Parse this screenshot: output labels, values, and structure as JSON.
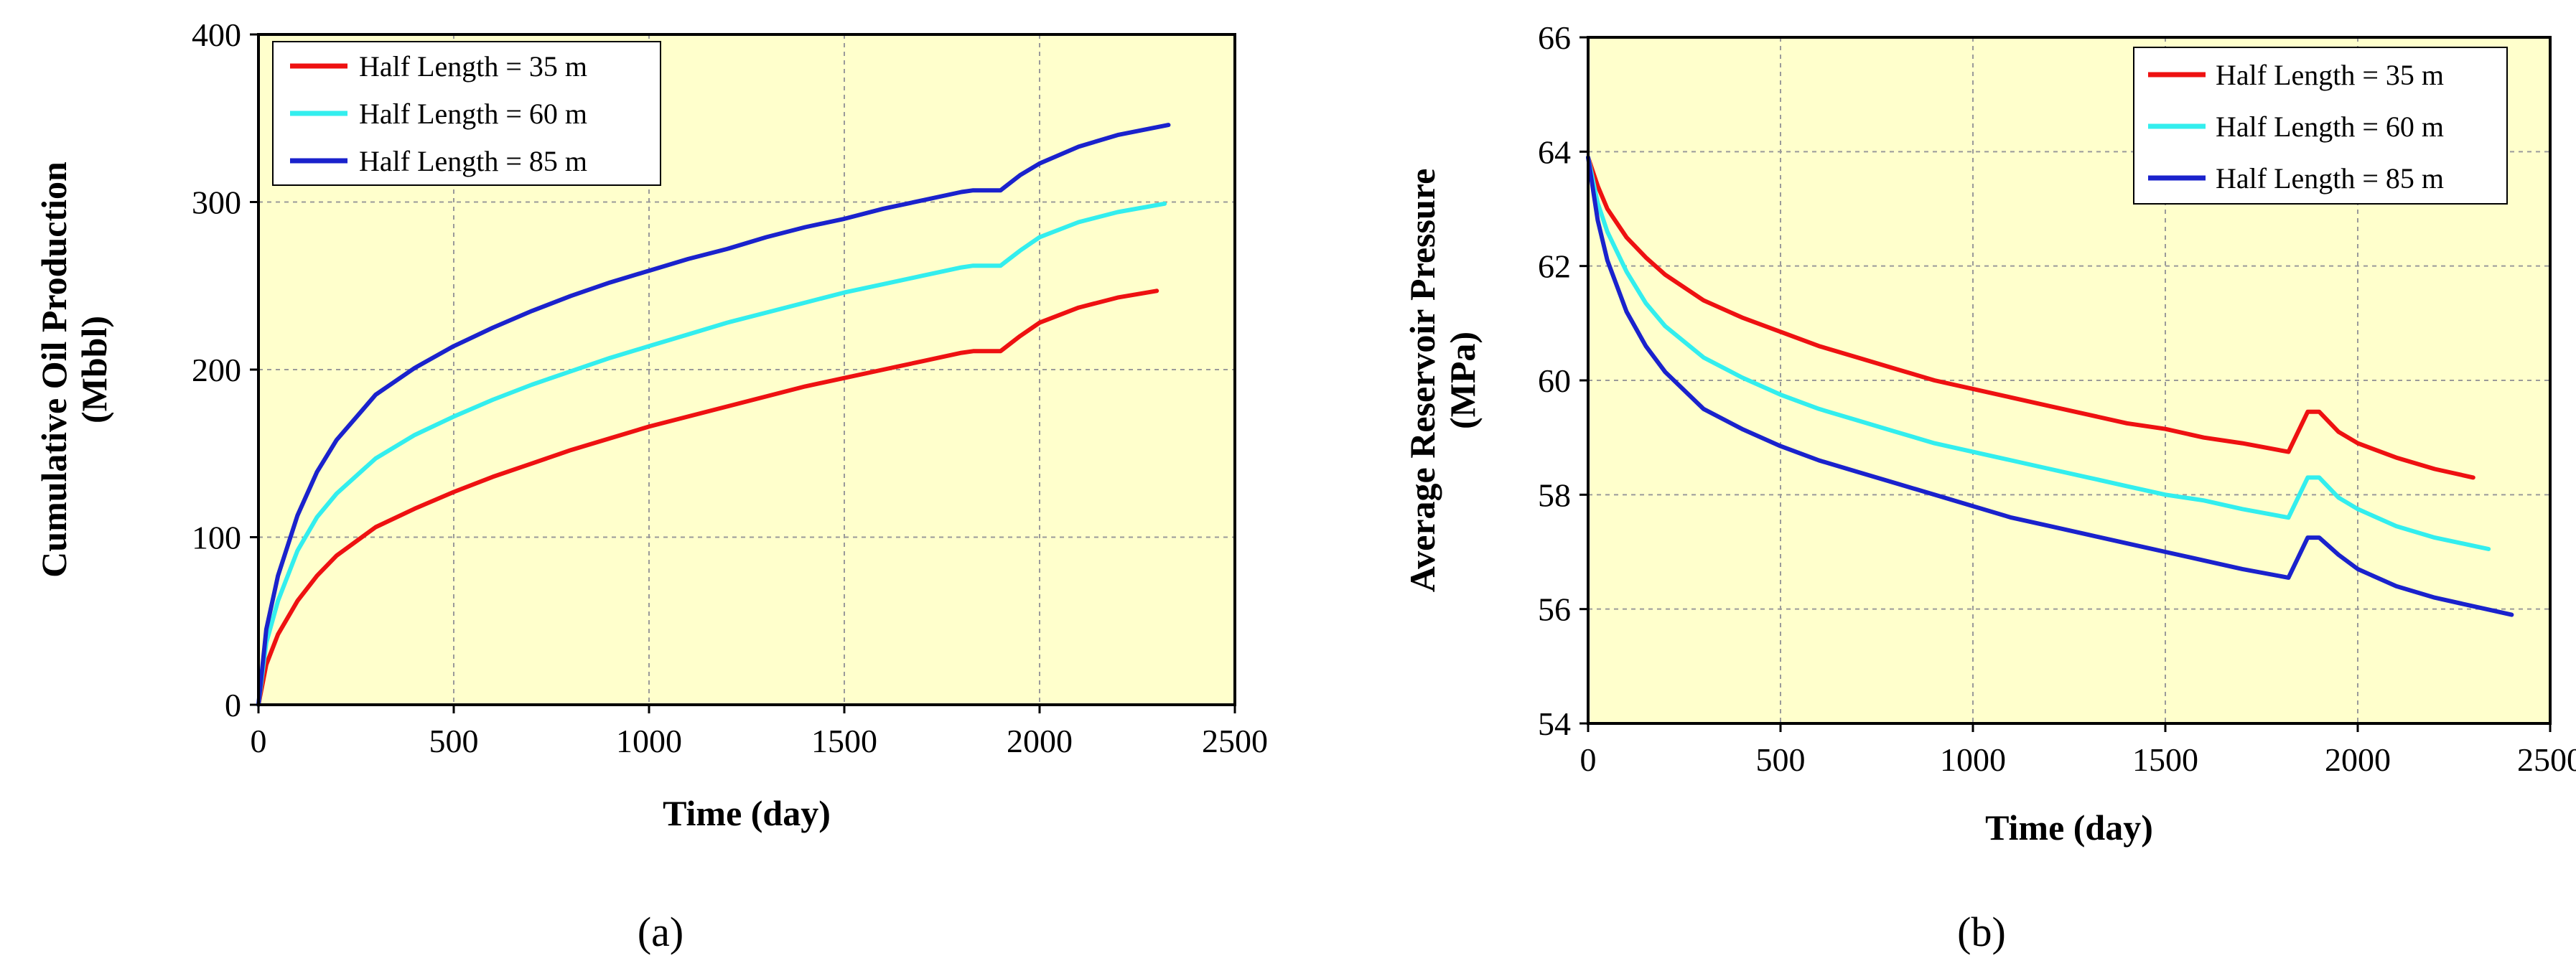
{
  "colors": {
    "plot_background": "#FFFFCC",
    "series": [
      "#EE1111",
      "#33EEEE",
      "#1A22CC"
    ]
  },
  "captions": {
    "a": "(a)",
    "b": "(b)"
  },
  "chart_data": [
    {
      "type": "line",
      "panel": "a",
      "title": "",
      "xlabel": "Time (day)",
      "ylabel_line1": "Cumulative Oil Production",
      "ylabel_line2": "(Mbbl)",
      "xlim": [
        0,
        2500
      ],
      "ylim": [
        0,
        400
      ],
      "xticks": [
        0,
        500,
        1000,
        1500,
        2000,
        2500
      ],
      "yticks": [
        0,
        100,
        200,
        300,
        400
      ],
      "grid": true,
      "legend_position": "top-left",
      "series": [
        {
          "name": "Half Length = 35 m",
          "color": "#EE1111",
          "x": [
            0,
            20,
            50,
            100,
            150,
            200,
            300,
            400,
            500,
            600,
            700,
            800,
            900,
            1000,
            1100,
            1200,
            1300,
            1400,
            1500,
            1600,
            1700,
            1800,
            1830,
            1900,
            1950,
            2000,
            2100,
            2200,
            2300
          ],
          "y": [
            0,
            24,
            42,
            62,
            77,
            89,
            106,
            117,
            127,
            136,
            144,
            152,
            159,
            166,
            172,
            178,
            184,
            190,
            195,
            200,
            205,
            210,
            211,
            211,
            220,
            228,
            237,
            243,
            247
          ]
        },
        {
          "name": "Half Length = 60 m",
          "color": "#33EEEE",
          "x": [
            0,
            20,
            50,
            100,
            150,
            200,
            300,
            400,
            500,
            600,
            700,
            800,
            900,
            1000,
            1100,
            1200,
            1300,
            1400,
            1500,
            1600,
            1700,
            1800,
            1830,
            1900,
            1950,
            2000,
            2100,
            2200,
            2320
          ],
          "y": [
            0,
            37,
            62,
            92,
            112,
            126,
            147,
            161,
            172,
            182,
            191,
            199,
            207,
            214,
            221,
            228,
            234,
            240,
            246,
            251,
            256,
            261,
            262,
            262,
            271,
            279,
            288,
            294,
            299
          ]
        },
        {
          "name": "Half Length = 85 m",
          "color": "#1A22CC",
          "x": [
            0,
            20,
            50,
            100,
            150,
            200,
            300,
            400,
            500,
            600,
            700,
            800,
            900,
            1000,
            1100,
            1200,
            1300,
            1400,
            1500,
            1600,
            1700,
            1800,
            1830,
            1900,
            1950,
            2000,
            2100,
            2200,
            2330
          ],
          "y": [
            0,
            45,
            77,
            113,
            139,
            158,
            185,
            201,
            214,
            225,
            235,
            244,
            252,
            259,
            266,
            272,
            279,
            285,
            290,
            296,
            301,
            306,
            307,
            307,
            316,
            323,
            333,
            340,
            346
          ]
        }
      ]
    },
    {
      "type": "line",
      "panel": "b",
      "title": "",
      "xlabel": "Time (day)",
      "ylabel_line1": "Average Reservoir Pressure",
      "ylabel_line2": "(MPa)",
      "xlim": [
        0,
        2500
      ],
      "ylim": [
        54,
        66
      ],
      "xticks": [
        0,
        500,
        1000,
        1500,
        2000,
        2500
      ],
      "yticks": [
        54,
        56,
        58,
        60,
        62,
        64,
        66
      ],
      "grid": true,
      "legend_position": "top-right",
      "series": [
        {
          "name": "Half Length = 35 m",
          "color": "#EE1111",
          "x": [
            0,
            25,
            50,
            100,
            150,
            200,
            300,
            400,
            500,
            600,
            700,
            800,
            900,
            1000,
            1100,
            1200,
            1300,
            1400,
            1500,
            1600,
            1700,
            1820,
            1870,
            1900,
            1950,
            2000,
            2100,
            2200,
            2300
          ],
          "y": [
            63.9,
            63.4,
            63.0,
            62.5,
            62.15,
            61.85,
            61.4,
            61.1,
            60.85,
            60.6,
            60.4,
            60.2,
            60.0,
            59.85,
            59.7,
            59.55,
            59.4,
            59.25,
            59.15,
            59.0,
            58.9,
            58.75,
            59.45,
            59.45,
            59.1,
            58.9,
            58.65,
            58.45,
            58.3
          ]
        },
        {
          "name": "Half Length = 60 m",
          "color": "#33EEEE",
          "x": [
            0,
            25,
            50,
            100,
            150,
            200,
            300,
            400,
            500,
            600,
            700,
            800,
            900,
            1000,
            1100,
            1200,
            1300,
            1400,
            1500,
            1600,
            1700,
            1820,
            1870,
            1900,
            1950,
            2000,
            2100,
            2200,
            2340
          ],
          "y": [
            63.9,
            63.1,
            62.6,
            61.9,
            61.35,
            60.95,
            60.4,
            60.05,
            59.75,
            59.5,
            59.3,
            59.1,
            58.9,
            58.75,
            58.6,
            58.45,
            58.3,
            58.15,
            58.0,
            57.9,
            57.75,
            57.6,
            58.3,
            58.3,
            57.95,
            57.75,
            57.45,
            57.25,
            57.05
          ]
        },
        {
          "name": "Half Length = 85 m",
          "color": "#1A22CC",
          "x": [
            0,
            25,
            50,
            100,
            150,
            200,
            300,
            400,
            500,
            600,
            700,
            800,
            900,
            1000,
            1100,
            1200,
            1300,
            1400,
            1500,
            1600,
            1700,
            1820,
            1870,
            1900,
            1950,
            2000,
            2100,
            2200,
            2300,
            2400
          ],
          "y": [
            63.9,
            62.8,
            62.1,
            61.2,
            60.6,
            60.15,
            59.5,
            59.15,
            58.85,
            58.6,
            58.4,
            58.2,
            58.0,
            57.8,
            57.6,
            57.45,
            57.3,
            57.15,
            57.0,
            56.85,
            56.7,
            56.55,
            57.25,
            57.25,
            56.95,
            56.7,
            56.4,
            56.2,
            56.05,
            55.9
          ]
        }
      ]
    }
  ]
}
